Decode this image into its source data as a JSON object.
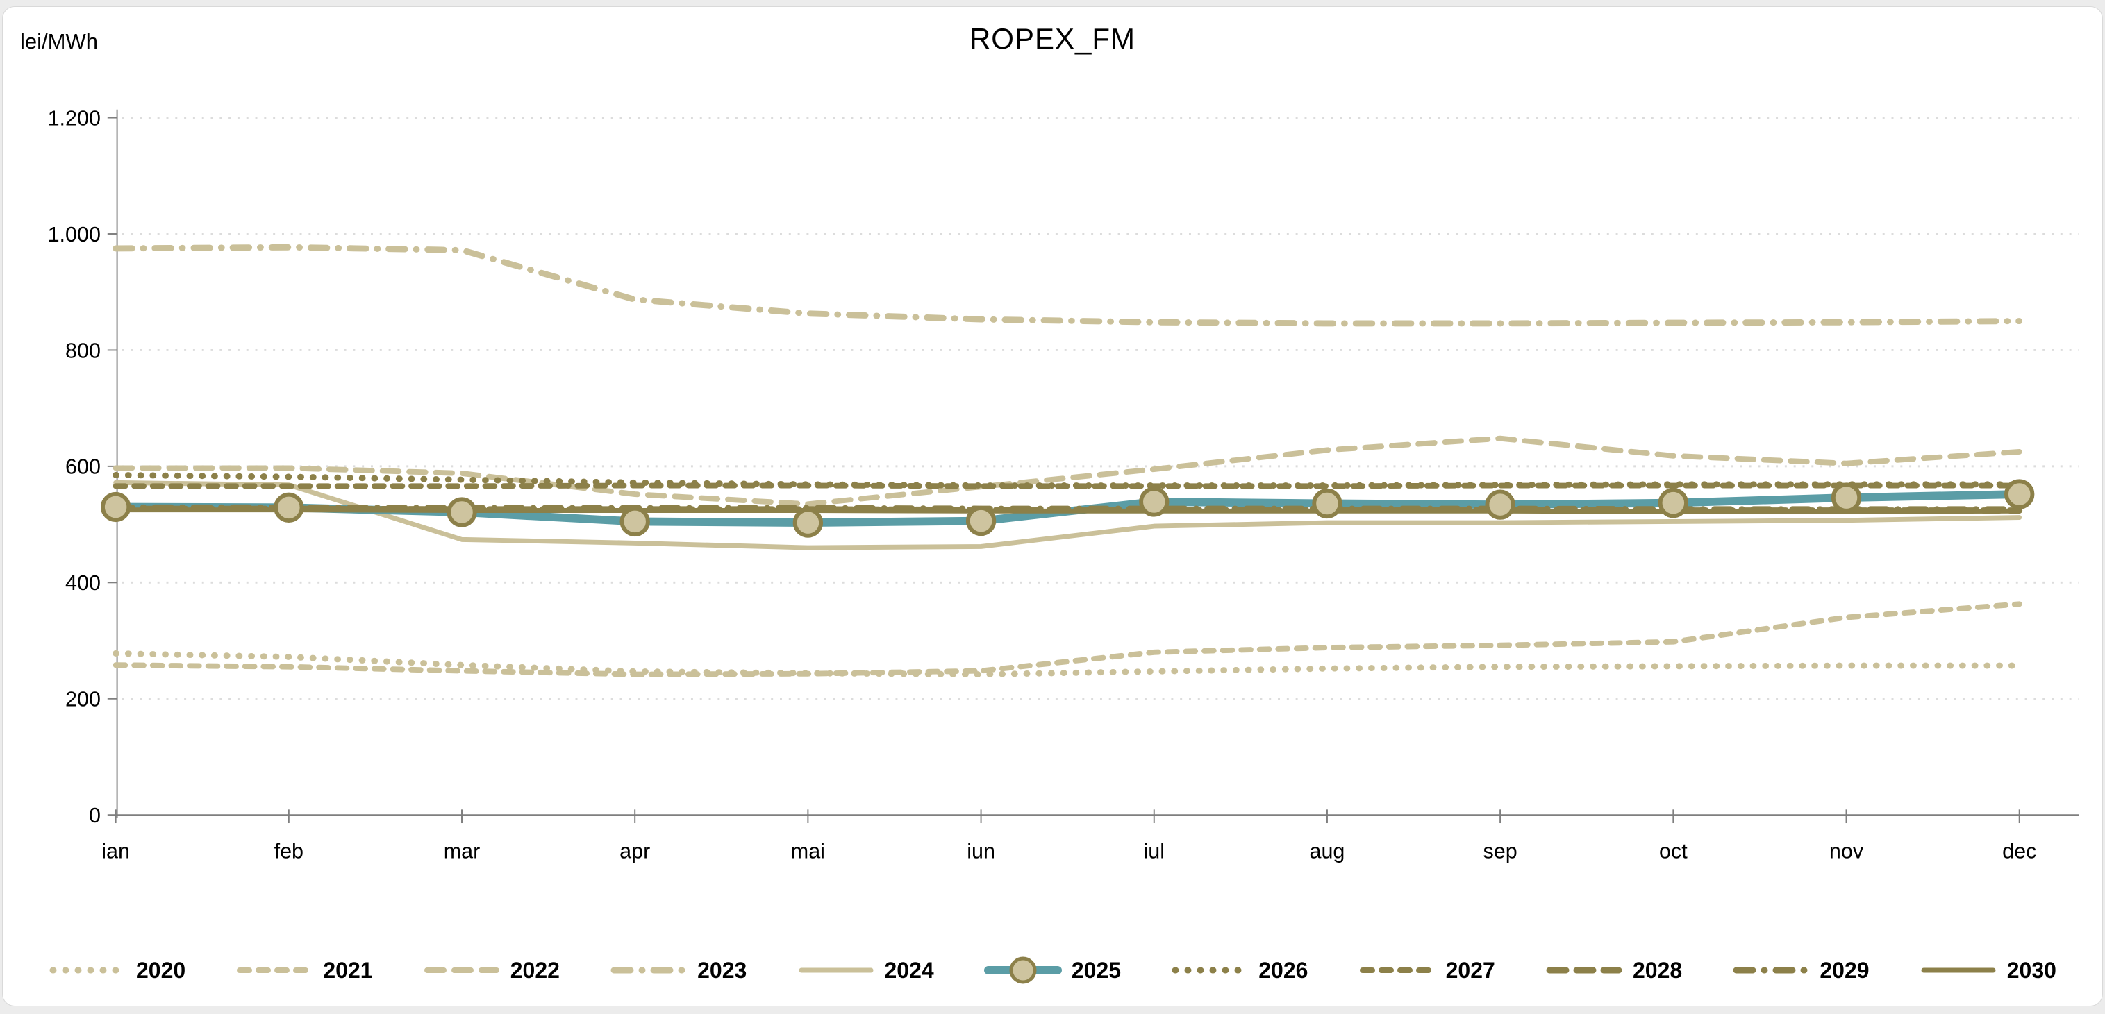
{
  "title": "ROPEX_FM",
  "y_axis": {
    "unit_label": "lei/MWh",
    "tick_labels": [
      "0",
      "200",
      "400",
      "600",
      "800",
      "1.000",
      "1.200"
    ],
    "tick_values": [
      0,
      200,
      400,
      600,
      800,
      1000,
      1200
    ]
  },
  "colors": {
    "tan": "#CAC099",
    "olive": "#8C8049",
    "teal": "#5B9DA6",
    "marker_fill": "#CEC49F",
    "gridline": "#DCDCDC",
    "axis": "#7F7F7F",
    "text": "#000000"
  },
  "chart_data": {
    "type": "line",
    "title": "ROPEX_FM",
    "ylabel": "lei/MWh",
    "ylim": [
      0,
      1200
    ],
    "grid": "horizontal-dotted",
    "legend_position": "bottom",
    "categories": [
      "ian",
      "feb",
      "mar",
      "apr",
      "mai",
      "iun",
      "iul",
      "aug",
      "sep",
      "oct",
      "nov",
      "dec"
    ],
    "series": [
      {
        "name": "2020",
        "color": "#CAC099",
        "line": "dotted",
        "width": 9,
        "values": [
          278,
          272,
          258,
          247,
          244,
          242,
          247,
          252,
          255,
          256,
          257,
          257
        ]
      },
      {
        "name": "2021",
        "color": "#CAC099",
        "line": "dashed",
        "width": 8,
        "values": [
          258,
          255,
          248,
          242,
          243,
          248,
          280,
          288,
          292,
          298,
          340,
          363
        ]
      },
      {
        "name": "2022",
        "color": "#CAC099",
        "line": "long-dash",
        "width": 8,
        "values": [
          597,
          597,
          588,
          552,
          535,
          565,
          595,
          628,
          648,
          618,
          605,
          625
        ]
      },
      {
        "name": "2023",
        "color": "#CAC099",
        "line": "dash-dot",
        "width": 9,
        "values": [
          975,
          977,
          972,
          887,
          863,
          853,
          848,
          846,
          846,
          847,
          848,
          850
        ]
      },
      {
        "name": "2024",
        "color": "#CAC099",
        "line": "solid",
        "width": 7,
        "values": [
          572,
          568,
          474,
          468,
          460,
          462,
          497,
          503,
          503,
          505,
          507,
          512
        ]
      },
      {
        "name": "2025",
        "color": "#5B9DA6",
        "line": "solid",
        "width": 12,
        "marker": "circle",
        "values": [
          530,
          529,
          521,
          505,
          503,
          506,
          539,
          536,
          534,
          537,
          546,
          552
        ]
      },
      {
        "name": "2026",
        "color": "#8C8049",
        "line": "dotted",
        "width": 9,
        "values": [
          585,
          582,
          577,
          572,
          569,
          567,
          567,
          567,
          568,
          569,
          569,
          569
        ]
      },
      {
        "name": "2027",
        "color": "#8C8049",
        "line": "dashed",
        "width": 8,
        "values": [
          566,
          566,
          566,
          567,
          567,
          566,
          566,
          566,
          567,
          567,
          567,
          567
        ]
      },
      {
        "name": "2028",
        "color": "#8C8049",
        "line": "long-dash",
        "width": 9,
        "values": [
          527,
          527,
          526,
          526,
          526,
          525,
          525,
          525,
          525,
          524,
          524,
          524
        ]
      },
      {
        "name": "2029",
        "color": "#8C8049",
        "line": "dash-dot",
        "width": 9,
        "values": [
          529,
          529,
          528,
          528,
          528,
          527,
          527,
          527,
          527,
          526,
          526,
          526
        ]
      },
      {
        "name": "2030",
        "color": "#8C8049",
        "line": "solid",
        "width": 7,
        "values": [
          525,
          525,
          524,
          524,
          524,
          523,
          523,
          523,
          523,
          522,
          522,
          523
        ]
      }
    ]
  }
}
